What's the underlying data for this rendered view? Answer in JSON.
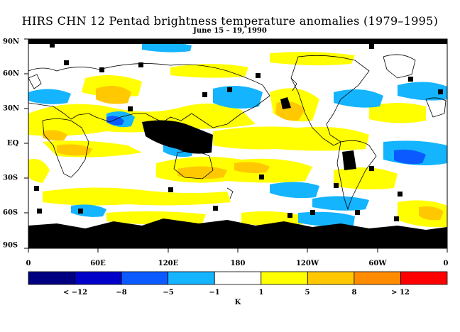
{
  "title": "HIRS CHN 12 Pentad brightness temperature anomalies (1979–1995)",
  "subtitle": "June 15 – 19, 1990",
  "lat_labels": [
    "90N",
    "60N",
    "30N",
    "EQ",
    "30S",
    "60S",
    "90S"
  ],
  "lon_labels": [
    "0",
    "60E",
    "120E",
    "180",
    "120W",
    "60W",
    "0"
  ],
  "colorbar": {
    "colors": [
      "#000080",
      "#0000c8",
      "#0a5aff",
      "#14b4ff",
      "#ffffff",
      "#ffff00",
      "#ffc800",
      "#ff8c00",
      "#ff0000"
    ],
    "labels": [
      "< −12",
      "−8",
      "−5",
      "−1",
      "1",
      "5",
      "8",
      "> 12"
    ],
    "unit": "K"
  },
  "colors": {
    "missing": "#000000",
    "land_outline": "#000000"
  }
}
